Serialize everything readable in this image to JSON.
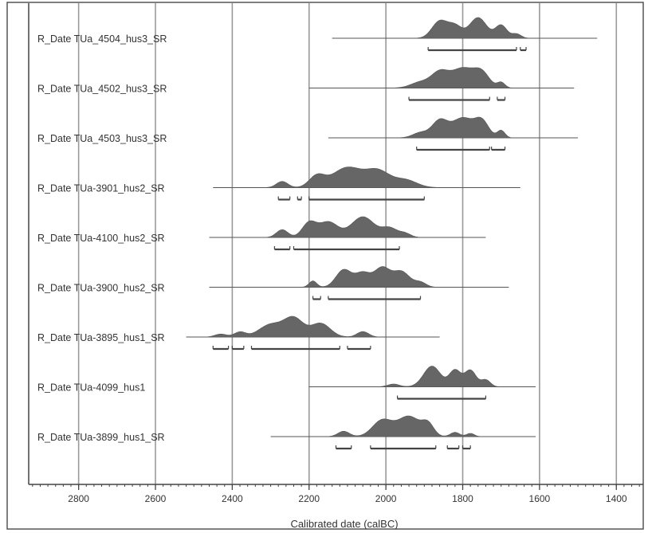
{
  "chart_data": {
    "type": "calibrated-date-distributions",
    "xlabel": "Calibrated date (calBC)",
    "x_axis_reversed": true,
    "xlim": [
      2930,
      1330
    ],
    "x_ticks": [
      2800,
      2600,
      2400,
      2200,
      2000,
      1800,
      1600,
      1400
    ],
    "tick_labels": [
      "2800",
      "2600",
      "2400",
      "2200",
      "2000",
      "1800",
      "1600",
      "1400"
    ],
    "grid": "vertical lines at each tick",
    "series": [
      {
        "name": "R_Date TUa_4504_hus3_SR",
        "line": [
          2140,
          1450
        ],
        "range_bars": [
          [
            1890,
            1660
          ],
          [
            1650,
            1635
          ]
        ],
        "peaks": [
          {
            "center": 1860,
            "height": 0.78,
            "sd": 20
          },
          {
            "center": 1820,
            "height": 0.55,
            "sd": 18
          },
          {
            "center": 1760,
            "height": 0.95,
            "sd": 22
          },
          {
            "center": 1700,
            "height": 0.6,
            "sd": 15
          },
          {
            "center": 1660,
            "height": 0.2,
            "sd": 12
          }
        ]
      },
      {
        "name": "R_Date TUa_4502_hus3_SR",
        "line": [
          2200,
          1510
        ],
        "range_bars": [
          [
            1940,
            1730
          ],
          [
            1710,
            1690
          ]
        ],
        "peaks": [
          {
            "center": 1910,
            "height": 0.3,
            "sd": 25
          },
          {
            "center": 1860,
            "height": 0.75,
            "sd": 22
          },
          {
            "center": 1800,
            "height": 1.0,
            "sd": 30
          },
          {
            "center": 1750,
            "height": 0.7,
            "sd": 20
          },
          {
            "center": 1700,
            "height": 0.28,
            "sd": 10
          }
        ]
      },
      {
        "name": "R_Date TUa_4503_hus3_SR",
        "line": [
          2150,
          1500
        ],
        "range_bars": [
          [
            1920,
            1730
          ],
          [
            1725,
            1690
          ]
        ],
        "peaks": [
          {
            "center": 1910,
            "height": 0.25,
            "sd": 20
          },
          {
            "center": 1860,
            "height": 0.8,
            "sd": 20
          },
          {
            "center": 1800,
            "height": 0.95,
            "sd": 28
          },
          {
            "center": 1750,
            "height": 0.75,
            "sd": 18
          },
          {
            "center": 1700,
            "height": 0.35,
            "sd": 10
          }
        ]
      },
      {
        "name": "R_Date TUa-3901_hus2_SR",
        "line": [
          2450,
          1650
        ],
        "range_bars": [
          [
            2280,
            2250
          ],
          [
            2230,
            2220
          ],
          [
            2200,
            1900
          ]
        ],
        "peaks": [
          {
            "center": 2270,
            "height": 0.2,
            "sd": 15
          },
          {
            "center": 2180,
            "height": 0.35,
            "sd": 20
          },
          {
            "center": 2100,
            "height": 0.65,
            "sd": 40
          },
          {
            "center": 2020,
            "height": 0.5,
            "sd": 30
          },
          {
            "center": 1950,
            "height": 0.25,
            "sd": 30
          }
        ]
      },
      {
        "name": "R_Date TUa-4100_hus2_SR",
        "line": [
          2460,
          1740
        ],
        "range_bars": [
          [
            2290,
            2250
          ],
          [
            2240,
            1965
          ]
        ],
        "peaks": [
          {
            "center": 2270,
            "height": 0.3,
            "sd": 15
          },
          {
            "center": 2200,
            "height": 0.55,
            "sd": 18
          },
          {
            "center": 2150,
            "height": 0.6,
            "sd": 25
          },
          {
            "center": 2060,
            "height": 0.8,
            "sd": 30
          },
          {
            "center": 1990,
            "height": 0.35,
            "sd": 20
          },
          {
            "center": 1950,
            "height": 0.15,
            "sd": 15
          }
        ]
      },
      {
        "name": "R_Date TUa-3900_hus2_SR",
        "line": [
          2460,
          1680
        ],
        "range_bars": [
          [
            2190,
            2170
          ],
          [
            2150,
            1910
          ]
        ],
        "peaks": [
          {
            "center": 2190,
            "height": 0.2,
            "sd": 10
          },
          {
            "center": 2110,
            "height": 0.55,
            "sd": 20
          },
          {
            "center": 2060,
            "height": 0.45,
            "sd": 20
          },
          {
            "center": 2010,
            "height": 0.6,
            "sd": 20
          },
          {
            "center": 1960,
            "height": 0.5,
            "sd": 22
          },
          {
            "center": 1910,
            "height": 0.15,
            "sd": 15
          }
        ]
      },
      {
        "name": "R_Date TUa-3895_hus1_SR",
        "line": [
          2520,
          1860
        ],
        "range_bars": [
          [
            2450,
            2410
          ],
          [
            2400,
            2370
          ],
          [
            2350,
            2120
          ],
          [
            2100,
            2040
          ]
        ],
        "peaks": [
          {
            "center": 2430,
            "height": 0.12,
            "sd": 15
          },
          {
            "center": 2380,
            "height": 0.2,
            "sd": 15
          },
          {
            "center": 2300,
            "height": 0.5,
            "sd": 30
          },
          {
            "center": 2240,
            "height": 0.75,
            "sd": 25
          },
          {
            "center": 2170,
            "height": 0.55,
            "sd": 25
          },
          {
            "center": 2060,
            "height": 0.22,
            "sd": 15
          }
        ]
      },
      {
        "name": "R_Date TUa-4099_hus1",
        "line": [
          2200,
          1610
        ],
        "range_bars": [
          [
            1970,
            1740
          ]
        ],
        "peaks": [
          {
            "center": 1980,
            "height": 0.1,
            "sd": 15
          },
          {
            "center": 1880,
            "height": 0.75,
            "sd": 22
          },
          {
            "center": 1820,
            "height": 0.6,
            "sd": 15
          },
          {
            "center": 1780,
            "height": 0.6,
            "sd": 15
          },
          {
            "center": 1740,
            "height": 0.25,
            "sd": 12
          }
        ]
      },
      {
        "name": "R_Date TUa-3899_hus1_SR",
        "line": [
          2300,
          1610
        ],
        "range_bars": [
          [
            2130,
            2090
          ],
          [
            2040,
            1870
          ],
          [
            1840,
            1810
          ],
          [
            1800,
            1780
          ]
        ],
        "peaks": [
          {
            "center": 2110,
            "height": 0.25,
            "sd": 15
          },
          {
            "center": 2010,
            "height": 0.75,
            "sd": 25
          },
          {
            "center": 1940,
            "height": 0.95,
            "sd": 30
          },
          {
            "center": 1890,
            "height": 0.5,
            "sd": 15
          },
          {
            "center": 1820,
            "height": 0.2,
            "sd": 12
          },
          {
            "center": 1780,
            "height": 0.15,
            "sd": 10
          }
        ]
      }
    ]
  },
  "colors": {
    "distribution_fill": "#666666",
    "axis": "#444444",
    "grid": "#999999",
    "text": "#333333"
  }
}
